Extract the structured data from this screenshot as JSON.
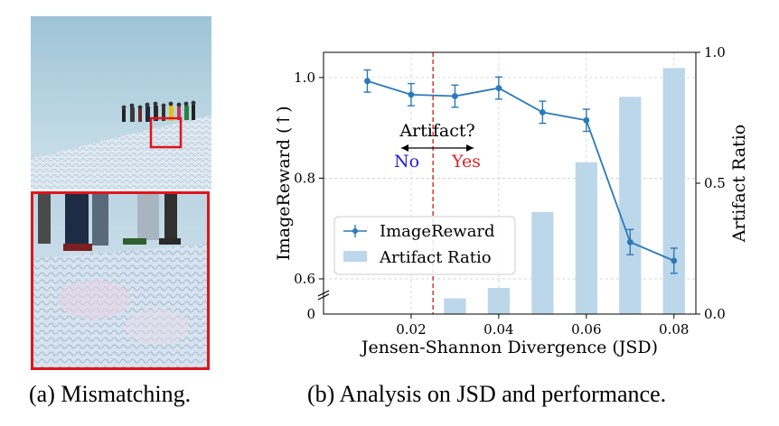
{
  "captions": {
    "a": "(a) Mismatching.",
    "b": "(b) Analysis on JSD and performance."
  },
  "photo": {
    "description_icon": "ski-group-photo",
    "highlight_color": "#e0151b"
  },
  "chart_data": {
    "type": "line",
    "xlabel": "Jensen-Shannon Divergence (JSD)",
    "ylabel": "ImageReward (↑)",
    "ylabel_right": "Artifact Ratio",
    "xlim": [
      0.0,
      0.085
    ],
    "ylim": [
      0.53,
      1.05
    ],
    "ylim_right": [
      0.0,
      1.0
    ],
    "x_ticks": [
      "0.02",
      "0.04",
      "0.06",
      "0.08"
    ],
    "x_tick_values": [
      0.02,
      0.04,
      0.06,
      0.08
    ],
    "y_ticks": [
      "0.6",
      "0.8",
      "1.0"
    ],
    "y_tick_values": [
      0.6,
      0.8,
      1.0
    ],
    "y_break_label": "0",
    "y_right_ticks": [
      "0.0",
      "0.5",
      "1.0"
    ],
    "y_right_tick_values": [
      0.0,
      0.5,
      1.0
    ],
    "grid": true,
    "legend_position": "lower-left",
    "series": [
      {
        "name": "ImageReward",
        "kind": "line",
        "color": "#2a7ab9",
        "x": [
          0.01,
          0.02,
          0.03,
          0.04,
          0.05,
          0.06,
          0.07,
          0.08
        ],
        "y": [
          0.993,
          0.966,
          0.963,
          0.979,
          0.931,
          0.915,
          0.673,
          0.636
        ],
        "err": [
          0.022,
          0.022,
          0.022,
          0.022,
          0.022,
          0.022,
          0.025,
          0.025
        ]
      },
      {
        "name": "Artifact Ratio",
        "kind": "bar",
        "axis": "right",
        "color": "#bcd6ea",
        "x": [
          0.03,
          0.04,
          0.05,
          0.06,
          0.07,
          0.08
        ],
        "y": [
          0.06,
          0.1,
          0.39,
          0.58,
          0.83,
          0.94
        ]
      }
    ],
    "annotation": {
      "threshold_x": 0.025,
      "threshold_color": "#d62728",
      "question": "Artifact?",
      "no_label": "No",
      "yes_label": "Yes",
      "no_color": "#1f1fd6",
      "yes_color": "#d62728"
    }
  }
}
